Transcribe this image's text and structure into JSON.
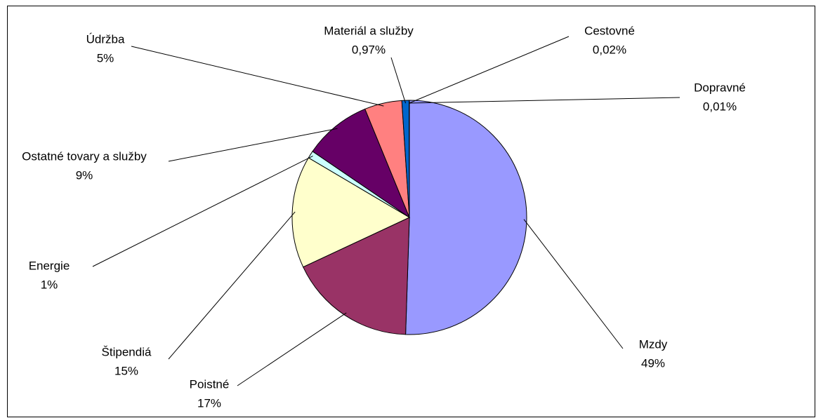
{
  "chart_data": {
    "type": "pie",
    "categories": [
      "Mzdy",
      "Poistné",
      "Štipendiá",
      "Energie",
      "Ostatné tovary a služby",
      "Údržba",
      "Materiál a služby",
      "Cestovné",
      "Dopravné"
    ],
    "values": [
      49,
      17,
      15,
      1,
      9,
      5,
      0.97,
      0.02,
      0.01
    ],
    "value_labels": [
      "49%",
      "17%",
      "15%",
      "1%",
      "9%",
      "5%",
      "0,97%",
      "0,02%",
      "0,01%"
    ],
    "colors": [
      "#9999ff",
      "#993366",
      "#ffffcc",
      "#ccffff",
      "#660066",
      "#ff8080",
      "#0066cc",
      "#ccccff",
      "#000080"
    ]
  }
}
